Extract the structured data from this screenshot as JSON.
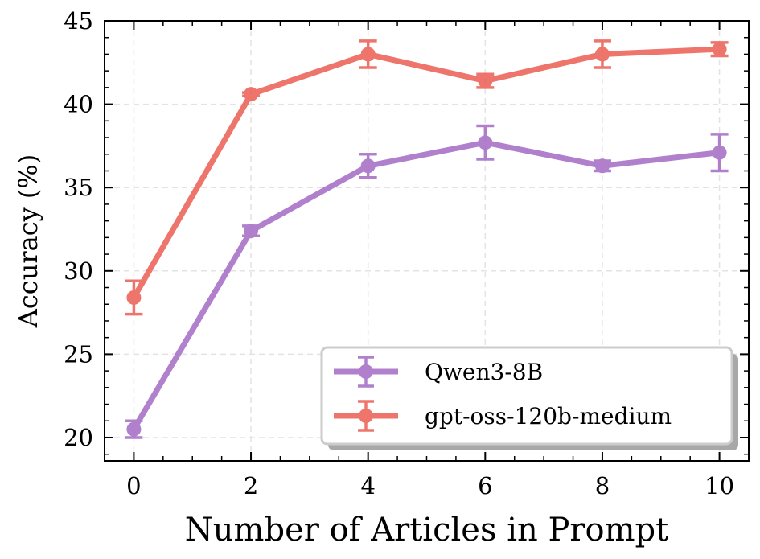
{
  "chart_data": {
    "type": "line",
    "title": "",
    "xlabel": "Number of Articles in Prompt",
    "ylabel": "Accuracy (%)",
    "x": [
      0,
      2,
      4,
      6,
      8,
      10
    ],
    "xlim": [
      -0.5,
      10.5
    ],
    "ylim": [
      18.6,
      45
    ],
    "xticks": [
      0,
      2,
      4,
      6,
      8,
      10
    ],
    "yticks": [
      20,
      25,
      30,
      35,
      40,
      45
    ],
    "grid": true,
    "legend_position": "bottom-right",
    "series": [
      {
        "name": "Qwen3-8B",
        "color": "#a66fc7",
        "values": [
          20.5,
          32.4,
          36.3,
          37.7,
          36.3,
          37.1
        ],
        "errors": [
          0.5,
          0.3,
          0.7,
          1.0,
          0.3,
          1.1
        ]
      },
      {
        "name": "gpt-oss-120b-medium",
        "color": "#ec6257",
        "values": [
          28.4,
          40.6,
          43.0,
          41.4,
          43.0,
          43.3
        ],
        "errors": [
          1.0,
          0.1,
          0.8,
          0.4,
          0.8,
          0.4
        ]
      }
    ]
  }
}
